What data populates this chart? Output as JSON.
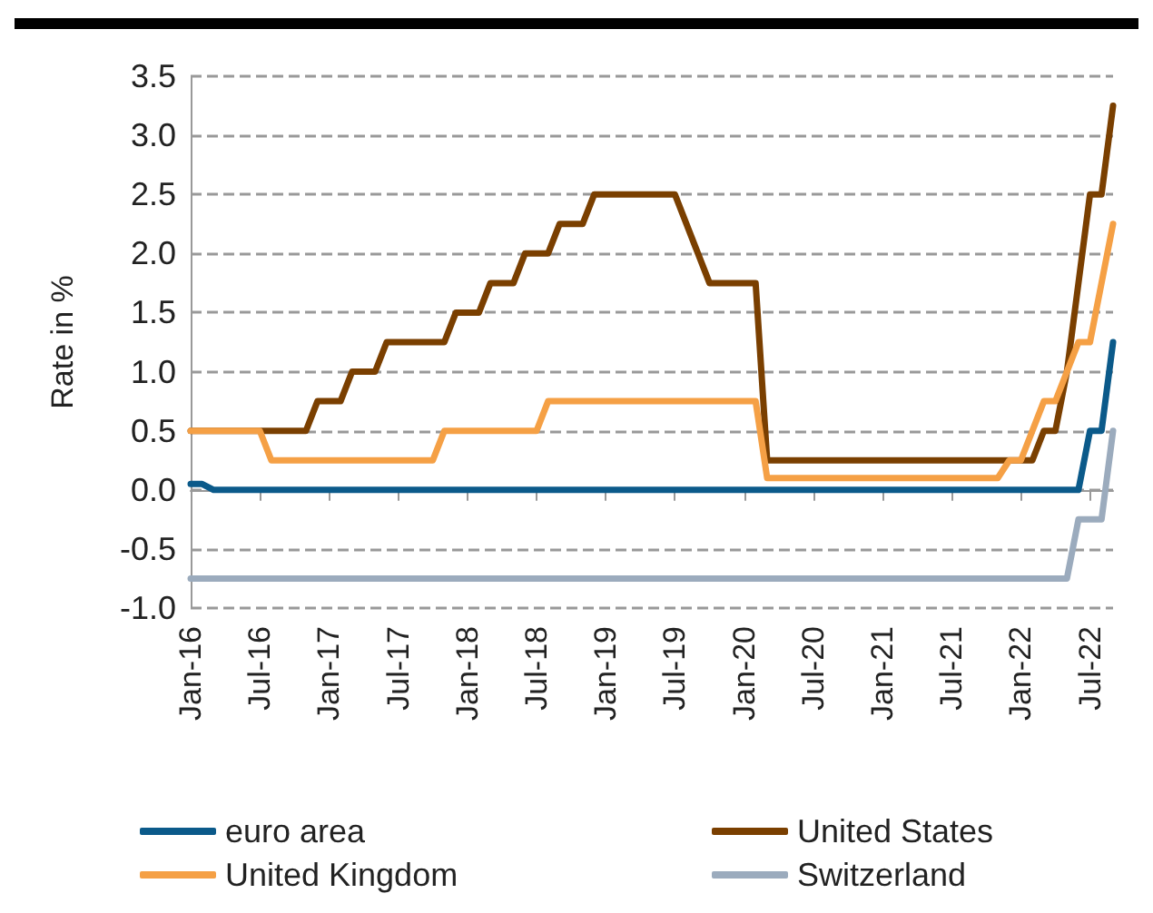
{
  "chart_data": {
    "type": "line",
    "ylabel": "Rate in %",
    "categories": [
      "Jan-16",
      null,
      null,
      null,
      null,
      null,
      "Jul-16",
      null,
      null,
      null,
      null,
      null,
      "Jan-17",
      null,
      null,
      null,
      null,
      null,
      "Jul-17",
      null,
      null,
      null,
      null,
      null,
      "Jan-18",
      null,
      null,
      null,
      null,
      null,
      "Jul-18",
      null,
      null,
      null,
      null,
      null,
      "Jan-19",
      null,
      null,
      null,
      null,
      null,
      "Jul-19",
      null,
      null,
      null,
      null,
      null,
      "Jan-20",
      null,
      null,
      null,
      null,
      null,
      "Jul-20",
      null,
      null,
      null,
      null,
      null,
      "Jan-21",
      null,
      null,
      null,
      null,
      null,
      "Jul-21",
      null,
      null,
      null,
      null,
      null,
      "Jan-22",
      null,
      null,
      null,
      null,
      null,
      "Jul-22",
      null,
      null
    ],
    "series": [
      {
        "name": "euro area",
        "color": "#0b5a8a",
        "values": [
          0.05,
          0.05,
          0,
          0,
          0,
          0,
          0,
          0,
          0,
          0,
          0,
          0,
          0,
          0,
          0,
          0,
          0,
          0,
          0,
          0,
          0,
          0,
          0,
          0,
          0,
          0,
          0,
          0,
          0,
          0,
          0,
          0,
          0,
          0,
          0,
          0,
          0,
          0,
          0,
          0,
          0,
          0,
          0,
          0,
          0,
          0,
          0,
          0,
          0,
          0,
          0,
          0,
          0,
          0,
          0,
          0,
          0,
          0,
          0,
          0,
          0,
          0,
          0,
          0,
          0,
          0,
          0,
          0,
          0,
          0,
          0,
          0,
          0,
          0,
          0,
          0,
          0,
          0,
          0.5,
          0.5,
          1.25
        ]
      },
      {
        "name": "United States",
        "color": "#7a3f00",
        "values": [
          0.5,
          0.5,
          0.5,
          0.5,
          0.5,
          0.5,
          0.5,
          0.5,
          0.5,
          0.5,
          0.5,
          0.75,
          0.75,
          0.75,
          1,
          1,
          1,
          1.25,
          1.25,
          1.25,
          1.25,
          1.25,
          1.25,
          1.5,
          1.5,
          1.5,
          1.75,
          1.75,
          1.75,
          2,
          2,
          2,
          2.25,
          2.25,
          2.25,
          2.5,
          2.5,
          2.5,
          2.5,
          2.5,
          2.5,
          2.5,
          2.5,
          2.25,
          2,
          1.75,
          1.75,
          1.75,
          1.75,
          1.75,
          0.25,
          0.25,
          0.25,
          0.25,
          0.25,
          0.25,
          0.25,
          0.25,
          0.25,
          0.25,
          0.25,
          0.25,
          0.25,
          0.25,
          0.25,
          0.25,
          0.25,
          0.25,
          0.25,
          0.25,
          0.25,
          0.25,
          0.25,
          0.25,
          0.5,
          0.5,
          1,
          1.75,
          2.5,
          2.5,
          3.25
        ]
      },
      {
        "name": "United Kingdom",
        "color": "#f5a045",
        "values": [
          0.5,
          0.5,
          0.5,
          0.5,
          0.5,
          0.5,
          0.5,
          0.25,
          0.25,
          0.25,
          0.25,
          0.25,
          0.25,
          0.25,
          0.25,
          0.25,
          0.25,
          0.25,
          0.25,
          0.25,
          0.25,
          0.25,
          0.5,
          0.5,
          0.5,
          0.5,
          0.5,
          0.5,
          0.5,
          0.5,
          0.5,
          0.75,
          0.75,
          0.75,
          0.75,
          0.75,
          0.75,
          0.75,
          0.75,
          0.75,
          0.75,
          0.75,
          0.75,
          0.75,
          0.75,
          0.75,
          0.75,
          0.75,
          0.75,
          0.75,
          0.1,
          0.1,
          0.1,
          0.1,
          0.1,
          0.1,
          0.1,
          0.1,
          0.1,
          0.1,
          0.1,
          0.1,
          0.1,
          0.1,
          0.1,
          0.1,
          0.1,
          0.1,
          0.1,
          0.1,
          0.1,
          0.25,
          0.25,
          0.5,
          0.75,
          0.75,
          1,
          1.25,
          1.25,
          1.75,
          2.25
        ]
      },
      {
        "name": "Switzerland",
        "color": "#9babbd",
        "values": [
          -0.75,
          -0.75,
          -0.75,
          -0.75,
          -0.75,
          -0.75,
          -0.75,
          -0.75,
          -0.75,
          -0.75,
          -0.75,
          -0.75,
          -0.75,
          -0.75,
          -0.75,
          -0.75,
          -0.75,
          -0.75,
          -0.75,
          -0.75,
          -0.75,
          -0.75,
          -0.75,
          -0.75,
          -0.75,
          -0.75,
          -0.75,
          -0.75,
          -0.75,
          -0.75,
          -0.75,
          -0.75,
          -0.75,
          -0.75,
          -0.75,
          -0.75,
          -0.75,
          -0.75,
          -0.75,
          -0.75,
          -0.75,
          -0.75,
          -0.75,
          -0.75,
          -0.75,
          -0.75,
          -0.75,
          -0.75,
          -0.75,
          -0.75,
          -0.75,
          -0.75,
          -0.75,
          -0.75,
          -0.75,
          -0.75,
          -0.75,
          -0.75,
          -0.75,
          -0.75,
          -0.75,
          -0.75,
          -0.75,
          -0.75,
          -0.75,
          -0.75,
          -0.75,
          -0.75,
          -0.75,
          -0.75,
          -0.75,
          -0.75,
          -0.75,
          -0.75,
          -0.75,
          -0.75,
          -0.75,
          -0.25,
          -0.25,
          -0.25,
          0.5
        ]
      }
    ],
    "ylim": [
      -1,
      3.5
    ],
    "yticks": [
      {
        "value": -1,
        "label": "-1.0"
      },
      -0.5,
      {
        "value": 0,
        "label": "0.0"
      },
      0.5,
      {
        "value": 1,
        "label": "1.0"
      },
      1.5,
      {
        "value": 2,
        "label": "2.0"
      },
      2.5,
      {
        "value": 3,
        "label": "3.0"
      },
      3.5
    ],
    "grid": "y",
    "legend": "bottom",
    "marker": "none",
    "line_style": "solid"
  }
}
